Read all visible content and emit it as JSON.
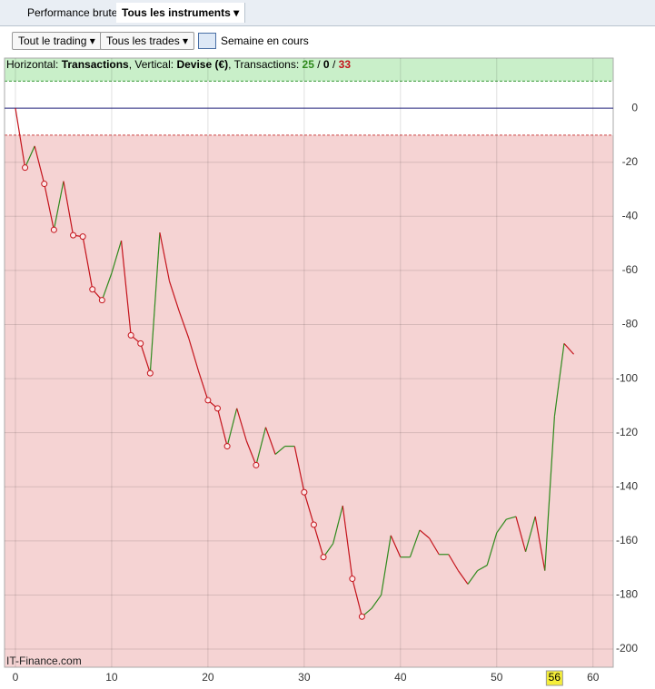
{
  "tabs": {
    "performance": "Performance brute",
    "instruments": "Tous les instruments"
  },
  "toolbar": {
    "trading": "Tout le trading",
    "trades": "Tous les trades",
    "period": "Semaine en cours"
  },
  "header_info": {
    "h_label": "Horizontal:",
    "h_value": "Transactions",
    "v_label": ", Vertical:",
    "v_value": "Devise (€)",
    "count_label": ", Transactions:",
    "winning": 25,
    "separator": "/",
    "neutral": 0,
    "losing": 33
  },
  "watermark": "IT-Finance.com",
  "chart_data": {
    "type": "line",
    "x": [
      0,
      1,
      2,
      3,
      4,
      5,
      6,
      7,
      8,
      9,
      10,
      11,
      12,
      13,
      14,
      15,
      16,
      17,
      18,
      19,
      20,
      21,
      22,
      23,
      24,
      25,
      26,
      27,
      28,
      29,
      30,
      31,
      32,
      33,
      34,
      35,
      36,
      37,
      38,
      39,
      40,
      41,
      42,
      43,
      44,
      45,
      46,
      47,
      48,
      49,
      50,
      51,
      52,
      53,
      54,
      55,
      56,
      57,
      58
    ],
    "values": [
      0,
      -22,
      -14,
      -28,
      -45,
      -27,
      -47,
      -47.5,
      -67,
      -71,
      -61,
      -49,
      -84,
      -87,
      -98,
      -46,
      -64,
      -75,
      -85,
      -97,
      -108,
      -111,
      -125,
      -111,
      -123,
      -132,
      -118,
      -128,
      -125,
      -125,
      -142,
      -154,
      -166,
      -161,
      -147,
      -174,
      -188,
      -185,
      -180,
      -158,
      -166,
      -166,
      -156,
      -159,
      -165,
      -165,
      -171,
      -176,
      -171,
      -169,
      -157,
      -152,
      -151,
      -164,
      -151,
      -171,
      -114,
      -87,
      -91
    ],
    "markers": [
      1,
      3,
      4,
      6,
      7,
      8,
      9,
      12,
      13,
      14,
      20,
      21,
      22,
      25,
      30,
      31,
      32,
      35,
      36
    ],
    "up_color": "#2f8a1d",
    "down_color": "#c4131b",
    "band": [
      -10,
      10
    ],
    "xlim": [
      -1.13,
      62.1
    ],
    "ylim": [
      -206.7,
      18.5
    ],
    "xticks": [
      0,
      10,
      20,
      30,
      40,
      50,
      60
    ],
    "yticks": [
      0,
      -20,
      -40,
      -60,
      -80,
      -100,
      -120,
      -140,
      -160,
      -180,
      -200
    ],
    "x_highlight": 56,
    "grid": true
  }
}
